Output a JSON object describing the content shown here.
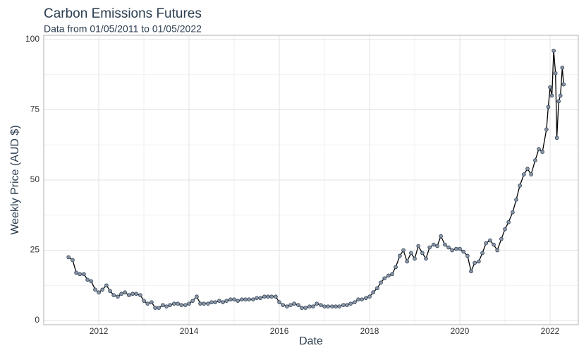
{
  "chart_data": {
    "type": "line",
    "title": "Carbon Emissions Futures",
    "subtitle": "Data from 01/05/2011 to 01/05/2022",
    "xlabel": "Date",
    "ylabel": "Weekly Price (AUD $)",
    "x": [
      2011.33,
      2011.42,
      2011.5,
      2011.58,
      2011.67,
      2011.75,
      2011.83,
      2011.92,
      2012.0,
      2012.08,
      2012.17,
      2012.25,
      2012.33,
      2012.42,
      2012.5,
      2012.58,
      2012.67,
      2012.75,
      2012.83,
      2012.92,
      2013.0,
      2013.08,
      2013.17,
      2013.25,
      2013.33,
      2013.42,
      2013.5,
      2013.58,
      2013.67,
      2013.75,
      2013.83,
      2013.92,
      2014.0,
      2014.08,
      2014.17,
      2014.25,
      2014.33,
      2014.42,
      2014.5,
      2014.58,
      2014.67,
      2014.75,
      2014.83,
      2014.92,
      2015.0,
      2015.08,
      2015.17,
      2015.25,
      2015.33,
      2015.42,
      2015.5,
      2015.58,
      2015.67,
      2015.75,
      2015.83,
      2015.92,
      2016.0,
      2016.08,
      2016.17,
      2016.25,
      2016.33,
      2016.42,
      2016.5,
      2016.58,
      2016.67,
      2016.75,
      2016.83,
      2016.92,
      2017.0,
      2017.08,
      2017.17,
      2017.25,
      2017.33,
      2017.42,
      2017.5,
      2017.58,
      2017.67,
      2017.75,
      2017.83,
      2017.92,
      2018.0,
      2018.08,
      2018.17,
      2018.25,
      2018.33,
      2018.42,
      2018.5,
      2018.58,
      2018.67,
      2018.75,
      2018.83,
      2018.92,
      2019.0,
      2019.08,
      2019.17,
      2019.25,
      2019.33,
      2019.42,
      2019.5,
      2019.58,
      2019.67,
      2019.75,
      2019.83,
      2019.92,
      2020.0,
      2020.08,
      2020.17,
      2020.25,
      2020.33,
      2020.42,
      2020.5,
      2020.58,
      2020.67,
      2020.75,
      2020.83,
      2020.92,
      2021.0,
      2021.08,
      2021.17,
      2021.25,
      2021.33,
      2021.42,
      2021.5,
      2021.58,
      2021.67,
      2021.75,
      2021.83,
      2021.92,
      2021.96,
      2022.0,
      2022.04,
      2022.08,
      2022.12,
      2022.15,
      2022.19,
      2022.23,
      2022.27,
      2022.3
    ],
    "values": [
      22.5,
      21.5,
      17,
      16.5,
      16.5,
      14.5,
      14,
      11,
      10,
      11,
      12.5,
      10.5,
      9,
      8.5,
      9.5,
      10,
      9,
      9.5,
      9.5,
      9,
      7,
      6,
      6.5,
      4.5,
      4.5,
      5.5,
      5,
      5.5,
      6,
      6,
      5.5,
      5.5,
      6,
      7,
      8.5,
      6,
      6,
      6,
      6.5,
      6.5,
      7,
      6.5,
      7,
      7.5,
      7.5,
      7,
      7.5,
      7.5,
      7.5,
      7.5,
      8,
      8,
      8.5,
      8.5,
      8.5,
      8.5,
      6.5,
      5.5,
      5,
      5.5,
      6,
      5.5,
      4.5,
      4.5,
      5,
      5,
      6,
      5.5,
      5,
      5,
      5,
      5,
      5,
      5.5,
      5.5,
      6,
      6.5,
      7.5,
      7.5,
      8,
      8.5,
      10,
      11.5,
      13.5,
      15,
      16,
      16.5,
      19,
      23,
      25,
      21,
      24,
      22,
      26.5,
      24,
      22,
      26,
      27,
      26.5,
      30,
      27,
      26,
      25,
      25.5,
      25.5,
      24.5,
      23,
      17.5,
      20.5,
      21,
      24,
      27.5,
      28.5,
      27,
      25,
      29,
      32.5,
      35,
      38.5,
      43,
      48,
      52,
      54,
      52,
      57,
      61,
      60,
      68,
      76,
      83,
      80,
      96,
      88,
      65,
      78,
      80,
      90,
      84
    ],
    "color": "#000000",
    "marker_color": "#8a96a8",
    "marker_edge": "#2c3e50",
    "xlim": [
      2010.78,
      2022.625
    ],
    "xticks": [
      2012,
      2014,
      2016,
      2018,
      2020,
      2022
    ],
    "ylim": [
      -1.5,
      101.5
    ],
    "yticks": [
      0,
      25,
      50,
      75,
      100
    ],
    "grid": true
  }
}
